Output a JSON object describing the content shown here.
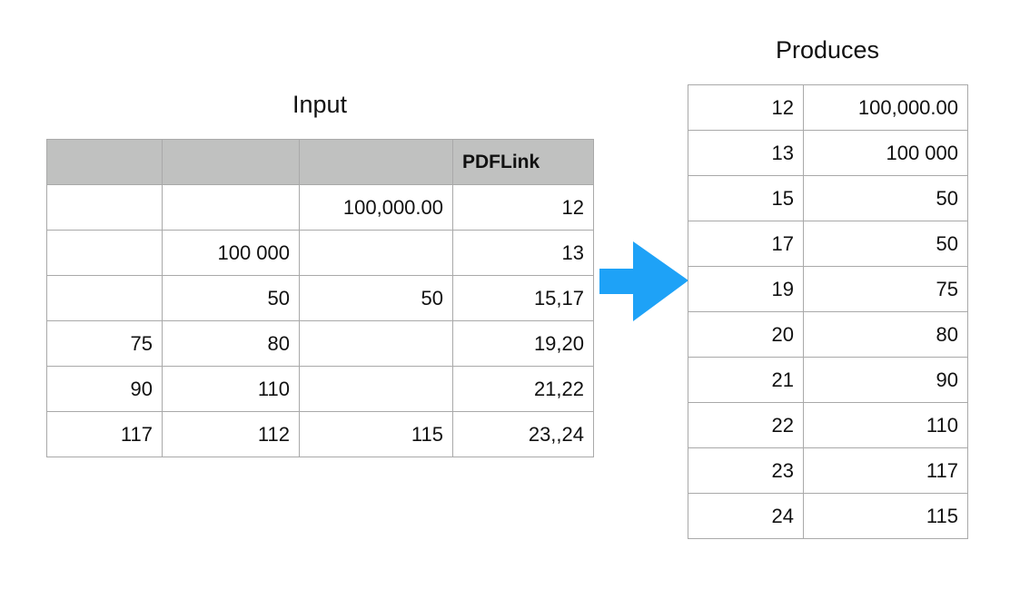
{
  "input": {
    "title": "Input",
    "headers": [
      "",
      "",
      "",
      "PDFLink"
    ],
    "rows": [
      [
        "",
        "",
        "100,000.00",
        "12"
      ],
      [
        "",
        "100 000",
        "",
        "13"
      ],
      [
        "",
        "50",
        "50",
        "15,17"
      ],
      [
        "75",
        "80",
        "",
        "19,20"
      ],
      [
        "90",
        "110",
        "",
        "21,22"
      ],
      [
        "117",
        "112",
        "115",
        "23,,24"
      ]
    ]
  },
  "output": {
    "title": "Produces",
    "rows": [
      [
        "12",
        "100,000.00"
      ],
      [
        "13",
        "100 000"
      ],
      [
        "15",
        "50"
      ],
      [
        "17",
        "50"
      ],
      [
        "19",
        "75"
      ],
      [
        "20",
        "80"
      ],
      [
        "21",
        "90"
      ],
      [
        "22",
        "110"
      ],
      [
        "23",
        "117"
      ],
      [
        "24",
        "115"
      ]
    ]
  },
  "colors": {
    "arrow": "#1ea2f7",
    "header_bg": "#c0c1c0",
    "border": "#a9a9a9"
  },
  "icons": {
    "arrow": "right-arrow-icon"
  }
}
